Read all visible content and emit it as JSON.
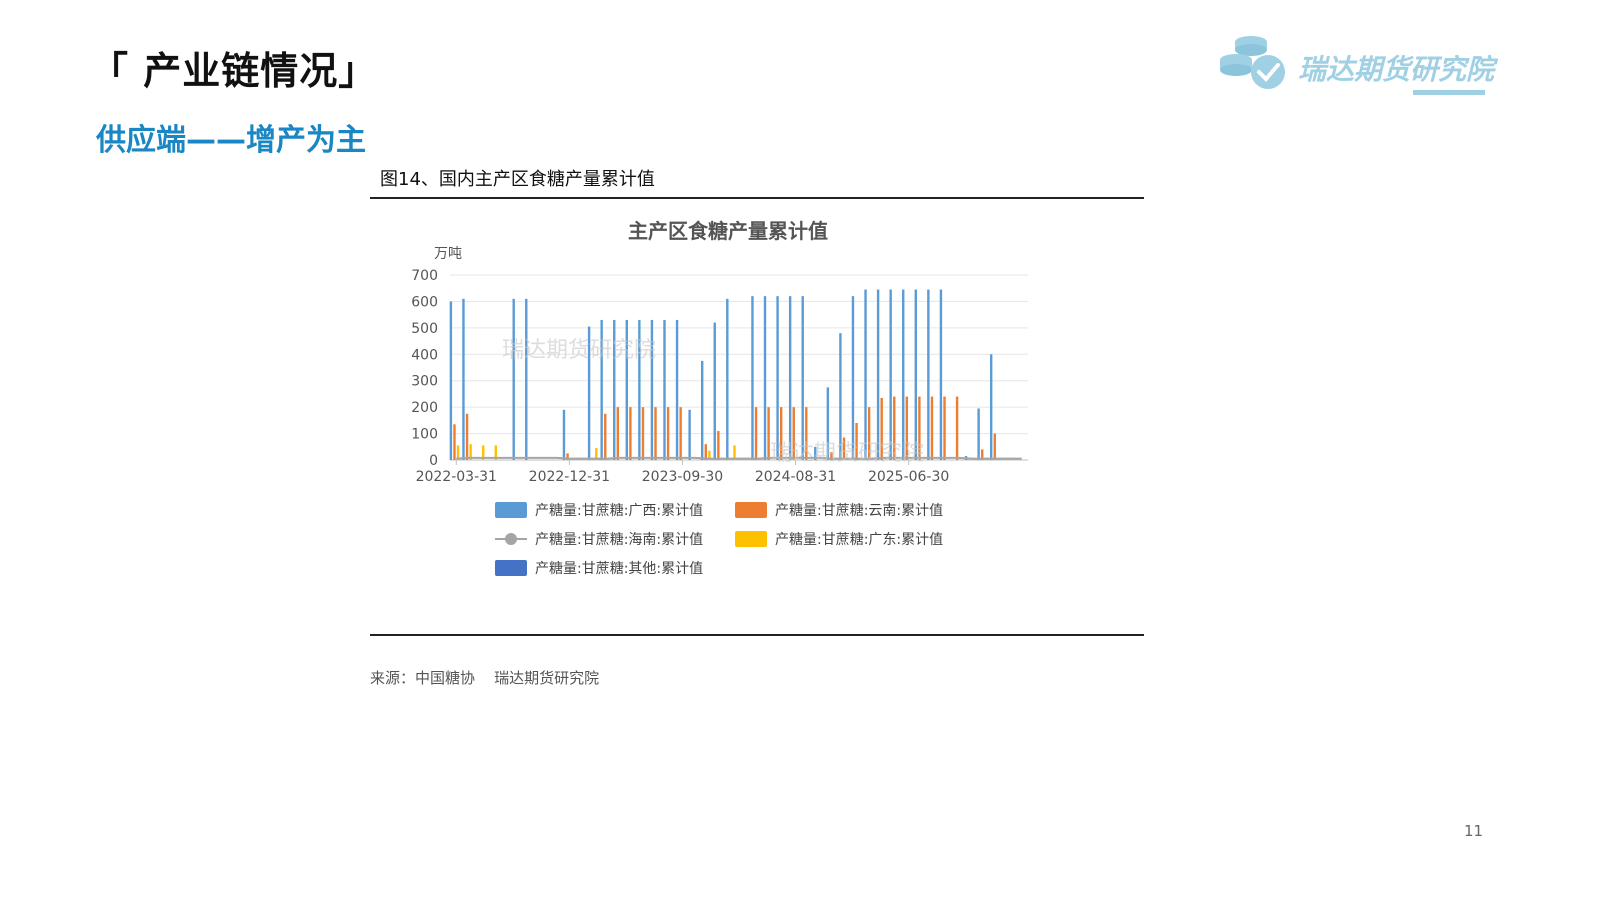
{
  "slide": {
    "title": "「 产业链情况」",
    "subtitle": "供应端——增产为主",
    "figure_caption": "图14、国内主产区食糖产量累计值",
    "source": "来源：中国糖协    瑞达期货研究院",
    "page_number": "11",
    "logo_text": "瑞达期货研究院"
  },
  "chart_data": {
    "type": "bar",
    "title": "主产区食糖产量累计值",
    "ylabel": "万吨",
    "xlabel": "",
    "ylim": [
      0,
      700
    ],
    "yticks": [
      0,
      100,
      200,
      300,
      400,
      500,
      600,
      700
    ],
    "xtick_labels": [
      "2022-03-31",
      "2022-12-31",
      "2023-09-30",
      "2024-08-31",
      "2025-06-30"
    ],
    "xtick_index": [
      0,
      9,
      18,
      27,
      36
    ],
    "grid": true,
    "legend_position": "bottom",
    "categories": [
      "2022-03",
      "2022-04",
      "2022-05",
      "2022-06",
      "2022-07",
      "2022-08",
      "2022-09",
      "2022-10",
      "2022-11",
      "2022-12",
      "2023-01",
      "2023-02",
      "2023-03",
      "2023-04",
      "2023-05",
      "2023-06",
      "2023-07",
      "2023-08",
      "2023-09",
      "2023-10",
      "2023-11",
      "2023-12",
      "2024-01",
      "2024-02",
      "2024-03",
      "2024-04",
      "2024-05",
      "2024-06",
      "2024-07",
      "2024-08",
      "2024-09",
      "2024-10",
      "2024-11",
      "2024-12",
      "2025-01",
      "2025-02",
      "2025-03",
      "2025-04",
      "2025-05",
      "2025-06",
      "2025-07",
      "2025-08",
      "2025-09",
      "2025-10",
      "2025-11",
      "2025-12"
    ],
    "series": [
      {
        "name": "产糖量:甘蔗糖:广西:累计值",
        "color": "#5b9bd5",
        "kind": "bar",
        "values": [
          600,
          610,
          0,
          0,
          0,
          610,
          610,
          0,
          0,
          190,
          0,
          505,
          530,
          530,
          530,
          530,
          530,
          530,
          530,
          190,
          375,
          520,
          610,
          0,
          620,
          620,
          620,
          620,
          620,
          50,
          275,
          480,
          620,
          645,
          645,
          645,
          645,
          645,
          645,
          645,
          0,
          15,
          195,
          400,
          0,
          0
        ]
      },
      {
        "name": "产糖量:甘蔗糖:云南:累计值",
        "color": "#ed7d31",
        "kind": "bar",
        "values": [
          135,
          175,
          0,
          0,
          0,
          0,
          0,
          0,
          0,
          25,
          0,
          0,
          175,
          200,
          200,
          200,
          200,
          200,
          200,
          0,
          60,
          110,
          0,
          0,
          200,
          200,
          200,
          200,
          200,
          0,
          30,
          85,
          140,
          200,
          235,
          240,
          240,
          240,
          240,
          240,
          240,
          0,
          40,
          100,
          0,
          0
        ]
      },
      {
        "name": "产糖量:甘蔗糖:海南:累计值",
        "color": "#a5a5a5",
        "kind": "line",
        "values": [
          5,
          8,
          8,
          8,
          8,
          8,
          8,
          8,
          8,
          5,
          5,
          5,
          5,
          8,
          8,
          8,
          8,
          8,
          8,
          8,
          5,
          5,
          5,
          5,
          5,
          8,
          8,
          8,
          8,
          8,
          5,
          5,
          5,
          5,
          8,
          8,
          8,
          8,
          8,
          8,
          8,
          5,
          5,
          5,
          5,
          5
        ]
      },
      {
        "name": "产糖量:甘蔗糖:广东:累计值",
        "color": "#ffc000",
        "kind": "bar",
        "values": [
          55,
          60,
          55,
          55,
          0,
          0,
          0,
          0,
          0,
          0,
          0,
          45,
          0,
          0,
          0,
          0,
          0,
          0,
          0,
          0,
          35,
          0,
          55,
          0,
          0,
          0,
          0,
          0,
          0,
          0,
          0,
          0,
          0,
          0,
          0,
          0,
          0,
          0,
          0,
          0,
          0,
          0,
          0,
          0,
          0,
          0
        ]
      },
      {
        "name": "产糖量:甘蔗糖:其他:累计值",
        "color": "#4472c4",
        "kind": "bar",
        "values": [
          0,
          0,
          0,
          0,
          0,
          0,
          0,
          0,
          0,
          0,
          0,
          0,
          0,
          0,
          0,
          0,
          0,
          0,
          0,
          0,
          0,
          0,
          0,
          0,
          0,
          0,
          0,
          0,
          0,
          0,
          0,
          0,
          0,
          0,
          0,
          0,
          0,
          0,
          0,
          0,
          0,
          0,
          0,
          0,
          0,
          0
        ]
      }
    ],
    "watermarks": [
      "瑞达期货研究院",
      "瑞达期货研究院"
    ]
  }
}
